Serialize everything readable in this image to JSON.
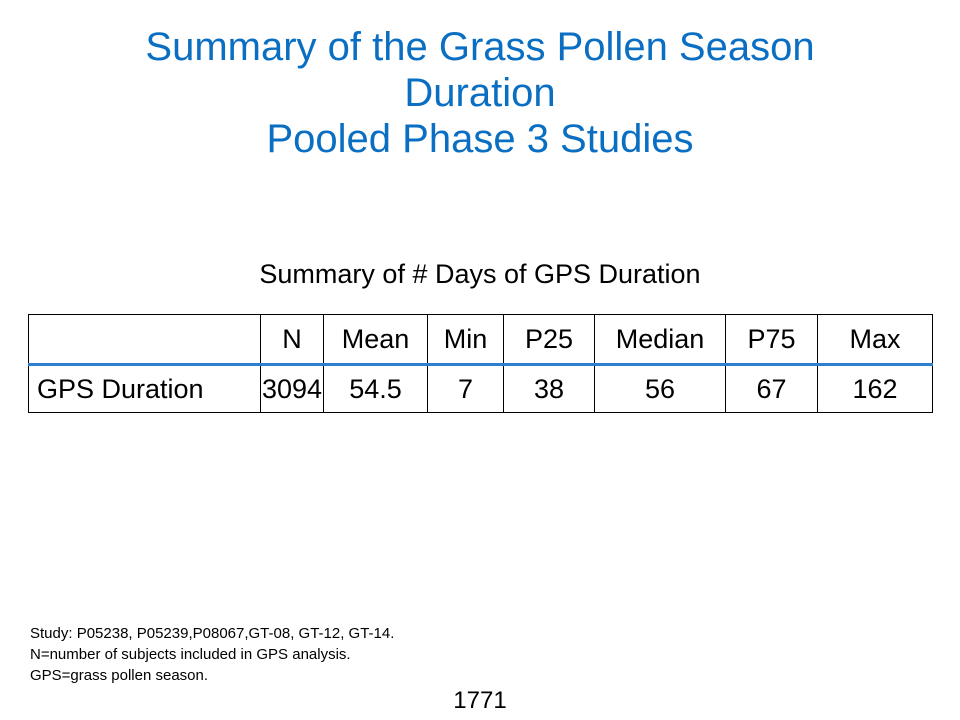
{
  "title": {
    "lines": [
      "Summary of the Grass Pollen Season",
      "Duration",
      "Pooled Phase 3 Studies"
    ]
  },
  "table": {
    "caption": "Summary of # Days of GPS Duration",
    "headers": [
      "",
      "N",
      "Mean",
      "Min",
      "P25",
      "Median",
      "P75",
      "Max"
    ],
    "rows": [
      [
        "GPS Duration",
        "3094",
        "54.5",
        "7",
        "38",
        "56",
        "67",
        "162"
      ]
    ]
  },
  "footnotes": [
    "Study: P05238, P05239,P08067,GT-08, GT-12, GT-14.",
    "N=number of subjects included in GPS analysis.",
    "GPS=grass pollen season."
  ],
  "page_number": "1771",
  "colors": {
    "title": "#0a6fc2",
    "header_rule": "#2f7fd0"
  }
}
